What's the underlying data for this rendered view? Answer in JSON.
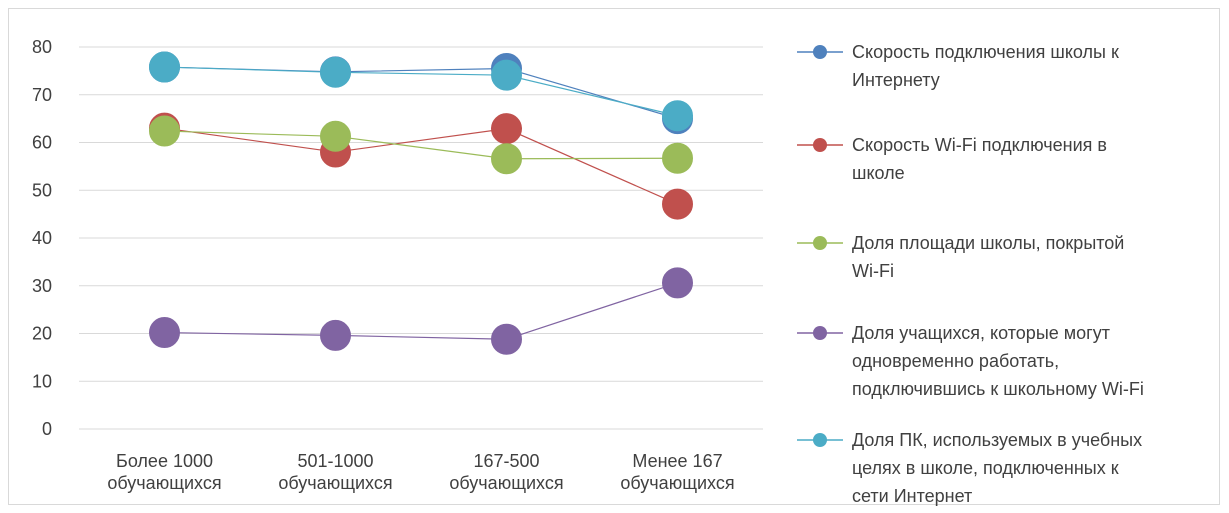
{
  "chart_data": {
    "type": "line",
    "categories": [
      [
        "Более 1000",
        "обучающихся"
      ],
      [
        "501-1000",
        "обучающихся"
      ],
      [
        "167-500",
        "обучающихся"
      ],
      [
        "Менее 167",
        "обучающихся"
      ]
    ],
    "ylim": [
      0,
      80
    ],
    "yticks": [
      0,
      10,
      20,
      30,
      40,
      50,
      60,
      70,
      80
    ],
    "grid": true,
    "legend_position": "right",
    "series": [
      {
        "name": "Скорость подключения школы к Интернету",
        "legend_lines": [
          "Скорость подключения школы к",
          "Интернету"
        ],
        "color": "#4f81bd",
        "values": [
          75.8,
          74.8,
          75.5,
          65.0
        ]
      },
      {
        "name": "Скорость Wi-Fi подключения в школе",
        "legend_lines": [
          "Скорость Wi-Fi подключения в",
          "школе"
        ],
        "color": "#c0504d",
        "values": [
          63.0,
          58.0,
          62.9,
          47.1
        ]
      },
      {
        "name": "Доля площади школы, покрытой Wi-Fi",
        "legend_lines": [
          "Доля площади школы, покрытой",
          "Wi-Fi"
        ],
        "color": "#9bbb59",
        "values": [
          62.4,
          61.3,
          56.6,
          56.7
        ]
      },
      {
        "name": "Доля учащихся, которые могут одновременно работать, подключившись к школьному Wi-Fi",
        "legend_lines": [
          "Доля учащихся, которые могут",
          "одновременно работать,",
          "подключившись к школьному Wi-Fi"
        ],
        "color": "#8064a2",
        "values": [
          20.2,
          19.6,
          18.8,
          30.6
        ]
      },
      {
        "name": "Доля ПК, используемых в учебных целях в школе, подключенных к сети Интернет",
        "legend_lines": [
          "Доля ПК, используемых в учебных",
          "целях в школе, подключенных к",
          "сети Интернет"
        ],
        "color": "#4bacc6",
        "values": [
          75.8,
          74.7,
          74.1,
          65.6
        ]
      }
    ]
  }
}
